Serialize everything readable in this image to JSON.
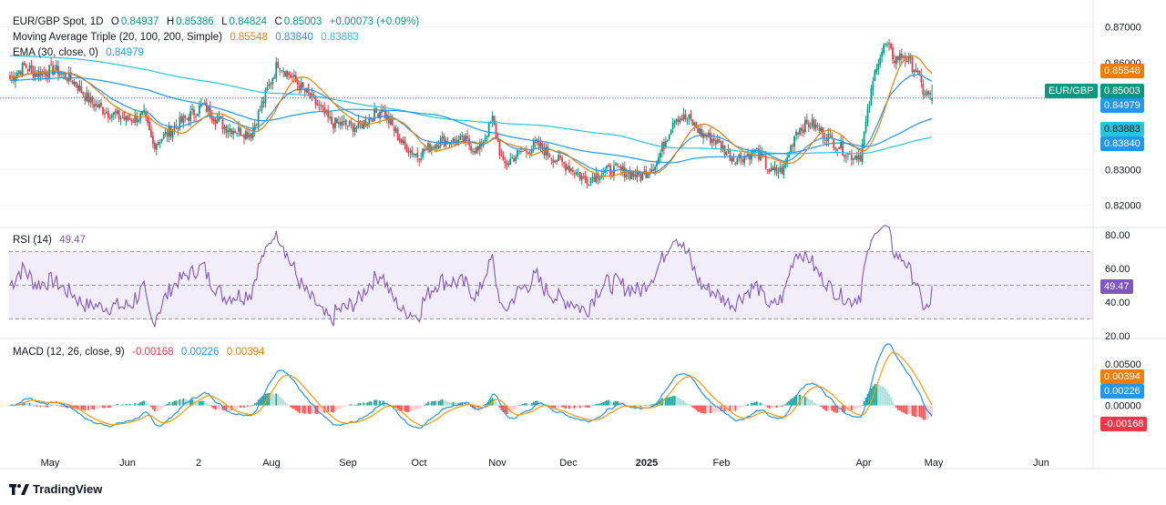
{
  "symbol": {
    "title": "EUR/GBP Spot, 1D",
    "o_label": "O",
    "o": "0.84937",
    "h_label": "H",
    "h": "0.85386",
    "l_label": "L",
    "l": "0.84824",
    "c_label": "C",
    "c": "0.85003",
    "change": "+0.00073 (+0.09%)"
  },
  "ma_triple": {
    "label": "Moving Average Triple (20, 100, 200, Simple)",
    "v20": "0.85548",
    "v100": "0.83840",
    "v200": "0.83883"
  },
  "ema": {
    "label": "EMA (30, close, 0)",
    "value": "0.84979"
  },
  "rsi": {
    "label": "RSI (14)",
    "value": "49.47"
  },
  "macd": {
    "label": "MACD (12, 26, close, 9)",
    "hist": "-0.00168",
    "macd": "0.00226",
    "signal": "0.00394"
  },
  "price_tags": {
    "sma20": "0.85548",
    "symbol_name": "EUR/GBP",
    "last": "0.85003",
    "ema": "0.84979",
    "sma200": "0.83883",
    "sma100": "0.83840"
  },
  "rsi_tag": "49.47",
  "macd_tags": {
    "signal": "0.00394",
    "macd": "0.00226",
    "hist": "-0.00168"
  },
  "price_axis": [
    "0.87000",
    "0.86000",
    "0.83000",
    "0.82000"
  ],
  "rsi_axis": [
    "80.00",
    "60.00",
    "40.00",
    "20.00"
  ],
  "macd_axis": [
    "0.00500",
    "0.00000"
  ],
  "time_axis": [
    "May",
    "Jun",
    "2",
    "Aug",
    "Sep",
    "Oct",
    "Nov",
    "Dec",
    "2025",
    "Feb",
    "Apr",
    "May",
    "Jun"
  ],
  "brand": "TradingView",
  "colors": {
    "up": "#089981",
    "down": "#f23645",
    "sma20": "#f57c00",
    "sma100": "#2196f3",
    "sma200": "#26c6da",
    "ema": "#2196f3",
    "rsi": "#7e57c2",
    "macd": "#2196f3",
    "signal": "#ff9800"
  },
  "chart_data": [
    {
      "type": "candlestick",
      "title": "EUR/GBP Spot, 1D",
      "ylim": [
        0.815,
        0.875
      ],
      "anchors": {
        "close": [
          [
            0,
            0.8555
          ],
          [
            8,
            0.859
          ],
          [
            15,
            0.857
          ],
          [
            25,
            0.858
          ],
          [
            35,
            0.855
          ],
          [
            45,
            0.849
          ],
          [
            55,
            0.846
          ],
          [
            65,
            0.844
          ],
          [
            75,
            0.845
          ],
          [
            80,
            0.837
          ],
          [
            95,
            0.843
          ],
          [
            108,
            0.848
          ],
          [
            120,
            0.842
          ],
          [
            135,
            0.84
          ],
          [
            140,
            0.847
          ],
          [
            150,
            0.86
          ],
          [
            163,
            0.853
          ],
          [
            172,
            0.848
          ],
          [
            180,
            0.843
          ],
          [
            195,
            0.842
          ],
          [
            208,
            0.847
          ],
          [
            220,
            0.837
          ],
          [
            228,
            0.834
          ],
          [
            240,
            0.838
          ],
          [
            255,
            0.838
          ],
          [
            262,
            0.835
          ],
          [
            270,
            0.844
          ],
          [
            276,
            0.831
          ],
          [
            283,
            0.834
          ],
          [
            295,
            0.837
          ],
          [
            305,
            0.833
          ],
          [
            315,
            0.83
          ],
          [
            322,
            0.827
          ],
          [
            330,
            0.829
          ],
          [
            340,
            0.83
          ],
          [
            353,
            0.828
          ],
          [
            362,
            0.832
          ],
          [
            372,
            0.845
          ],
          [
            380,
            0.844
          ],
          [
            387,
            0.84
          ],
          [
            395,
            0.838
          ],
          [
            405,
            0.833
          ],
          [
            418,
            0.835
          ],
          [
            426,
            0.829
          ],
          [
            433,
            0.83
          ],
          [
            440,
            0.841
          ],
          [
            448,
            0.843
          ],
          [
            456,
            0.84
          ],
          [
            465,
            0.836
          ],
          [
            470,
            0.834
          ],
          [
            476,
            0.834
          ],
          [
            485,
            0.86
          ],
          [
            490,
            0.865
          ],
          [
            495,
            0.861
          ],
          [
            500,
            0.862
          ],
          [
            507,
            0.858
          ],
          [
            511,
            0.852
          ],
          [
            516,
            0.85
          ]
        ]
      }
    },
    {
      "type": "line",
      "name": "SMA 20",
      "last": 0.85548
    },
    {
      "type": "line",
      "name": "SMA 100",
      "last": 0.8384
    },
    {
      "type": "line",
      "name": "SMA 200",
      "last": 0.83883
    },
    {
      "type": "line",
      "name": "EMA 30",
      "last": 0.84979
    },
    {
      "type": "line",
      "name": "RSI (14)",
      "ylim": [
        20,
        80
      ],
      "last": 49.47
    },
    {
      "type": "bar",
      "name": "MACD",
      "last_macd": 0.00226,
      "last_signal": 0.00394,
      "last_hist": -0.00168
    }
  ]
}
